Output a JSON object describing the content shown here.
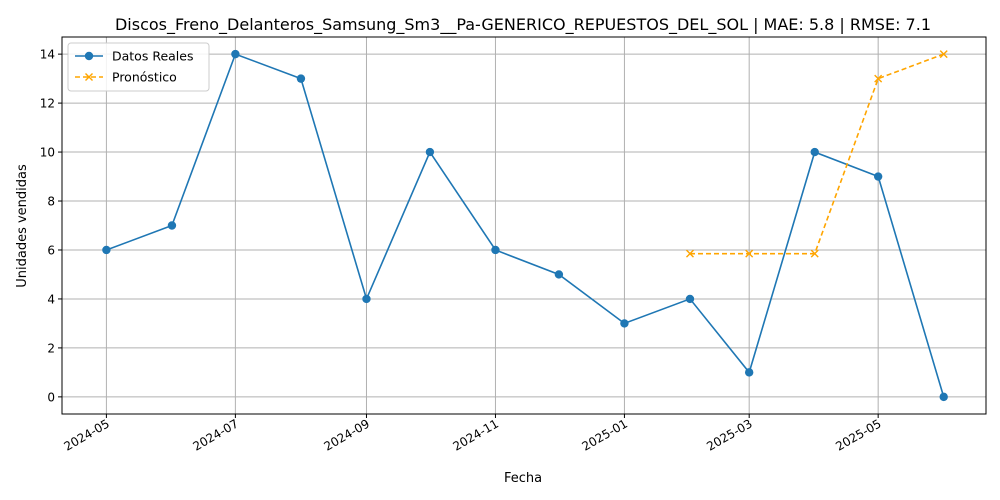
{
  "chart_data": {
    "type": "line",
    "title": "Discos_Freno_Delanteros_Samsung_Sm3__Pa-GENERICO_REPUESTOS_DEL_SOL | MAE: 5.8 | RMSE: 7.1",
    "xlabel": "Fecha",
    "ylabel": "Unidades vendidas",
    "x_ticks": [
      "2024-05",
      "2024-07",
      "2024-09",
      "2024-11",
      "2025-01",
      "2025-03",
      "2025-05"
    ],
    "y_ticks": [
      "0",
      "2",
      "4",
      "6",
      "8",
      "10",
      "12",
      "14"
    ],
    "ylim": [
      -0.7,
      14.7
    ],
    "xlim": [
      "2024-04-10",
      "2025-06-21"
    ],
    "grid": true,
    "legend_position": "top-left",
    "series": [
      {
        "name": "Datos Reales",
        "color": "#1f77b4",
        "style": "solid",
        "marker": "circle",
        "x": [
          "2024-05-01",
          "2024-06-01",
          "2024-07-01",
          "2024-08-01",
          "2024-09-01",
          "2024-10-01",
          "2024-11-01",
          "2024-12-01",
          "2025-01-01",
          "2025-02-01",
          "2025-03-01",
          "2025-04-01",
          "2025-05-01",
          "2025-06-01"
        ],
        "values": [
          6,
          7,
          14,
          13,
          4,
          10,
          6,
          5,
          3,
          4,
          1,
          10,
          9,
          0
        ]
      },
      {
        "name": "Pronóstico",
        "color": "#ffa500",
        "style": "dashed",
        "marker": "x",
        "x": [
          "2025-02-01",
          "2025-03-01",
          "2025-04-01",
          "2025-05-01",
          "2025-06-01"
        ],
        "values": [
          5.85,
          5.85,
          5.85,
          13,
          14
        ]
      }
    ]
  }
}
